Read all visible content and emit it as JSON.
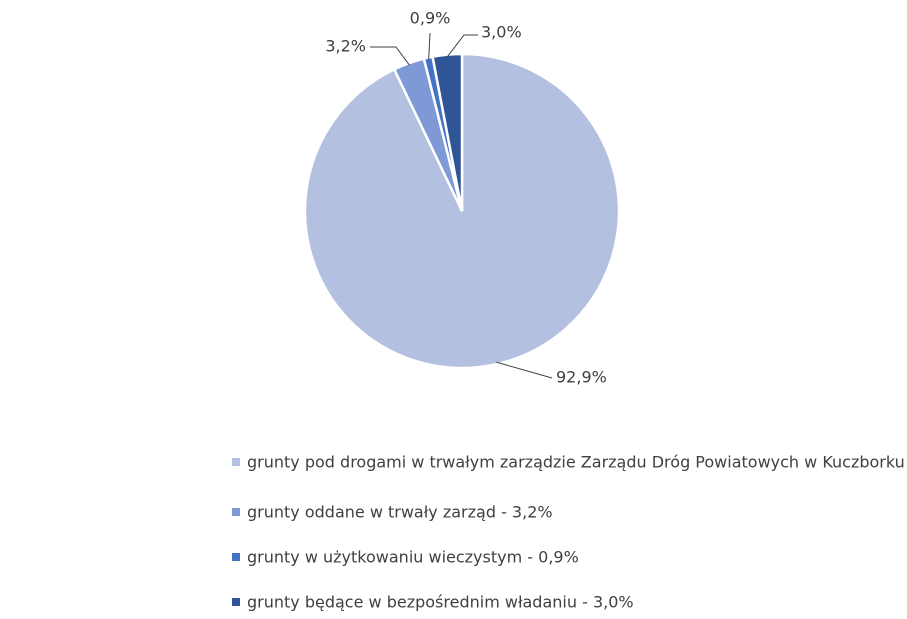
{
  "chart_data": {
    "type": "pie",
    "categories": [
      "grunty pod drogami w trwałym zarządzie Zarządu Dróg Powiatowych w Kuczborku - 92,9%",
      "grunty oddane w trwały zarząd - 3,2%",
      "grunty w użytkowaniu wieczystym - 0,9%",
      "grunty będące w bezpośrednim władaniu - 3,0%"
    ],
    "values": [
      92.9,
      3.2,
      0.9,
      3.0
    ],
    "value_labels": [
      "92,9%",
      "3,2%",
      "0,9%",
      "3,0%"
    ],
    "colors": [
      "#b4c0e0",
      "#7f98d6",
      "#4472c4",
      "#2f5597"
    ],
    "legend": "bottom"
  }
}
